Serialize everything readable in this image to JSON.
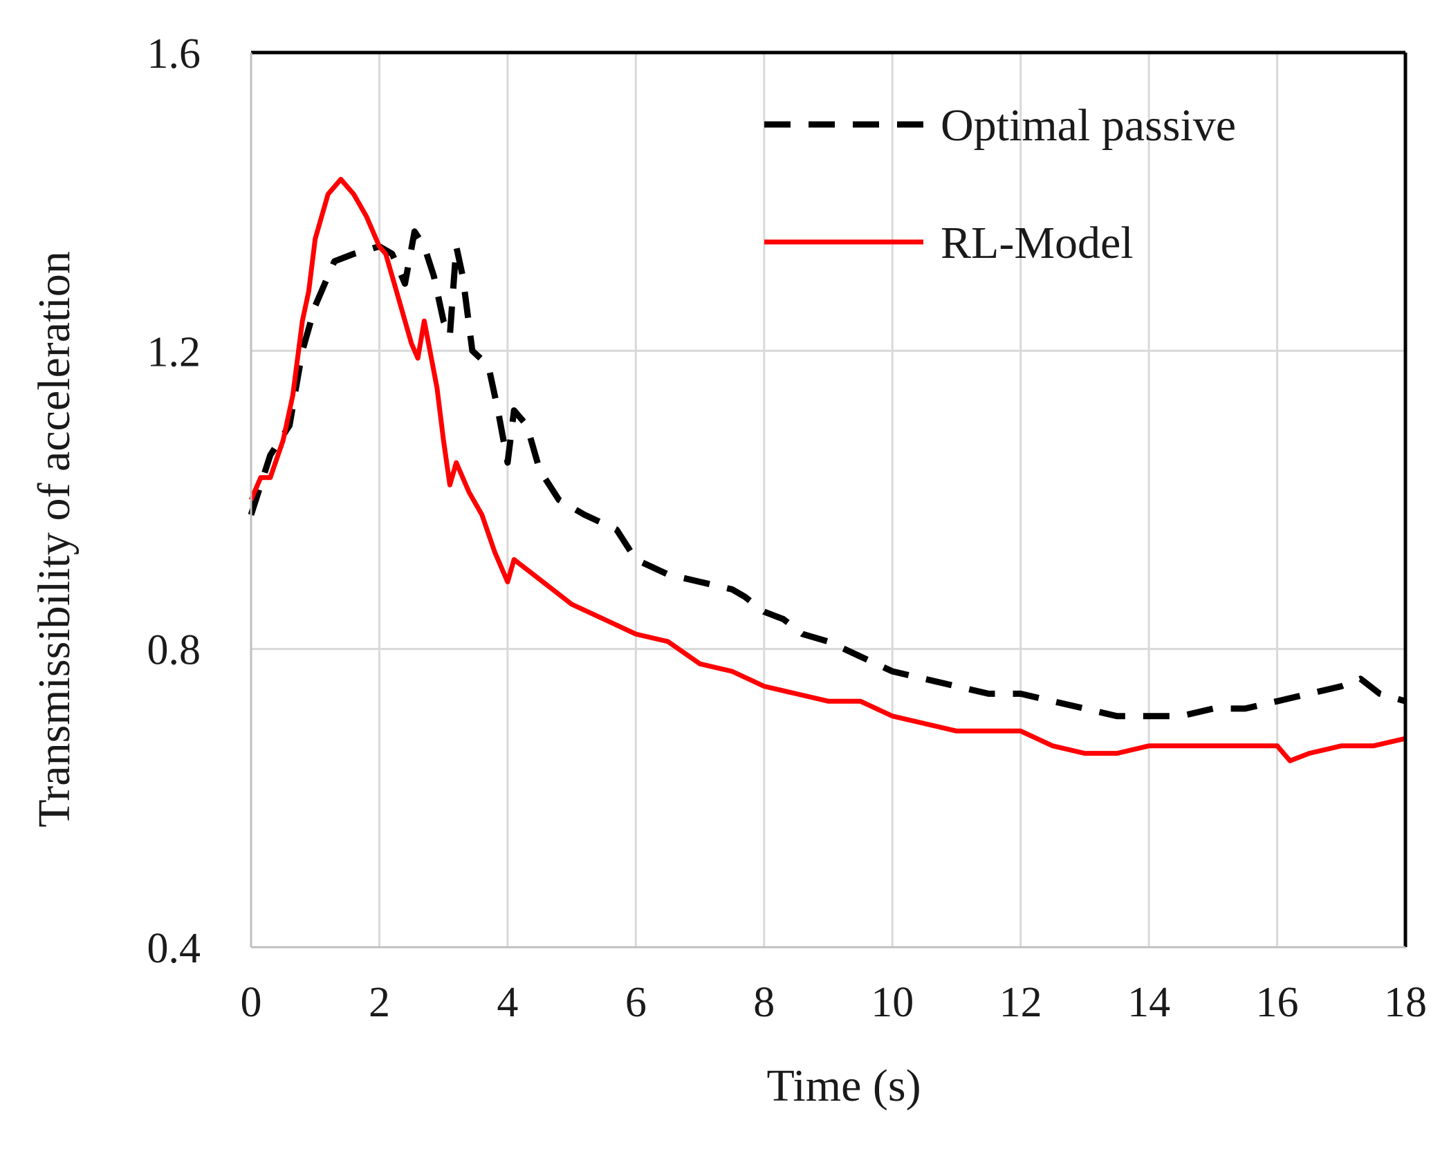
{
  "chart_data": {
    "type": "line",
    "title": "",
    "xlabel": "Time (s)",
    "ylabel": "Transmissibility of acceleration",
    "xlim": [
      0,
      18
    ],
    "ylim": [
      0.4,
      1.6
    ],
    "x_ticks": [
      "0",
      "2",
      "4",
      "6",
      "8",
      "10",
      "12",
      "14",
      "16",
      "18"
    ],
    "y_ticks": [
      "0.4",
      "0.8",
      "1.2",
      "1.6"
    ],
    "grid": true,
    "legend_position": "top-right",
    "colors": {
      "axis": "#000000",
      "grid": "#d9d9d9"
    },
    "series": [
      {
        "name": "Optimal passive",
        "style": "dashed",
        "color": "#000000",
        "points": [
          [
            0.0,
            0.98
          ],
          [
            0.3,
            1.06
          ],
          [
            0.6,
            1.1
          ],
          [
            0.8,
            1.2
          ],
          [
            1.0,
            1.26
          ],
          [
            1.3,
            1.32
          ],
          [
            1.6,
            1.33
          ],
          [
            2.0,
            1.34
          ],
          [
            2.2,
            1.33
          ],
          [
            2.4,
            1.29
          ],
          [
            2.55,
            1.36
          ],
          [
            2.7,
            1.34
          ],
          [
            2.85,
            1.3
          ],
          [
            3.0,
            1.24
          ],
          [
            3.1,
            1.22
          ],
          [
            3.2,
            1.34
          ],
          [
            3.3,
            1.3
          ],
          [
            3.45,
            1.2
          ],
          [
            3.7,
            1.18
          ],
          [
            3.85,
            1.12
          ],
          [
            4.0,
            1.05
          ],
          [
            4.1,
            1.12
          ],
          [
            4.3,
            1.1
          ],
          [
            4.5,
            1.04
          ],
          [
            4.8,
            1.0
          ],
          [
            5.2,
            0.98
          ],
          [
            5.7,
            0.96
          ],
          [
            6.0,
            0.92
          ],
          [
            6.5,
            0.9
          ],
          [
            7.0,
            0.89
          ],
          [
            7.5,
            0.88
          ],
          [
            7.7,
            0.87
          ],
          [
            8.0,
            0.85
          ],
          [
            8.3,
            0.84
          ],
          [
            8.6,
            0.82
          ],
          [
            9.0,
            0.81
          ],
          [
            9.5,
            0.79
          ],
          [
            10.0,
            0.77
          ],
          [
            10.5,
            0.76
          ],
          [
            11.0,
            0.75
          ],
          [
            11.5,
            0.74
          ],
          [
            12.0,
            0.74
          ],
          [
            12.5,
            0.73
          ],
          [
            13.0,
            0.72
          ],
          [
            13.5,
            0.71
          ],
          [
            14.0,
            0.71
          ],
          [
            14.5,
            0.71
          ],
          [
            15.0,
            0.72
          ],
          [
            15.5,
            0.72
          ],
          [
            16.0,
            0.73
          ],
          [
            16.5,
            0.74
          ],
          [
            17.0,
            0.75
          ],
          [
            17.3,
            0.76
          ],
          [
            17.6,
            0.74
          ],
          [
            18.0,
            0.73
          ]
        ]
      },
      {
        "name": "RL-Model",
        "style": "solid",
        "color": "#ff0000",
        "points": [
          [
            0.0,
            1.0
          ],
          [
            0.15,
            1.03
          ],
          [
            0.3,
            1.03
          ],
          [
            0.5,
            1.08
          ],
          [
            0.65,
            1.14
          ],
          [
            0.8,
            1.24
          ],
          [
            0.9,
            1.28
          ],
          [
            1.0,
            1.35
          ],
          [
            1.1,
            1.38
          ],
          [
            1.2,
            1.41
          ],
          [
            1.4,
            1.43
          ],
          [
            1.6,
            1.41
          ],
          [
            1.8,
            1.38
          ],
          [
            2.0,
            1.34
          ],
          [
            2.1,
            1.33
          ],
          [
            2.3,
            1.27
          ],
          [
            2.5,
            1.21
          ],
          [
            2.6,
            1.19
          ],
          [
            2.7,
            1.24
          ],
          [
            2.9,
            1.15
          ],
          [
            3.0,
            1.08
          ],
          [
            3.1,
            1.02
          ],
          [
            3.2,
            1.05
          ],
          [
            3.4,
            1.01
          ],
          [
            3.6,
            0.98
          ],
          [
            3.8,
            0.93
          ],
          [
            4.0,
            0.89
          ],
          [
            4.1,
            0.92
          ],
          [
            4.4,
            0.9
          ],
          [
            4.7,
            0.88
          ],
          [
            5.0,
            0.86
          ],
          [
            5.5,
            0.84
          ],
          [
            6.0,
            0.82
          ],
          [
            6.5,
            0.81
          ],
          [
            7.0,
            0.78
          ],
          [
            7.5,
            0.77
          ],
          [
            8.0,
            0.75
          ],
          [
            8.5,
            0.74
          ],
          [
            9.0,
            0.73
          ],
          [
            9.5,
            0.73
          ],
          [
            10.0,
            0.71
          ],
          [
            10.5,
            0.7
          ],
          [
            11.0,
            0.69
          ],
          [
            11.5,
            0.69
          ],
          [
            12.0,
            0.69
          ],
          [
            12.5,
            0.67
          ],
          [
            13.0,
            0.66
          ],
          [
            13.5,
            0.66
          ],
          [
            14.0,
            0.67
          ],
          [
            14.5,
            0.67
          ],
          [
            15.0,
            0.67
          ],
          [
            15.5,
            0.67
          ],
          [
            16.0,
            0.67
          ],
          [
            16.2,
            0.65
          ],
          [
            16.5,
            0.66
          ],
          [
            17.0,
            0.67
          ],
          [
            17.5,
            0.67
          ],
          [
            18.0,
            0.68
          ]
        ]
      }
    ]
  }
}
